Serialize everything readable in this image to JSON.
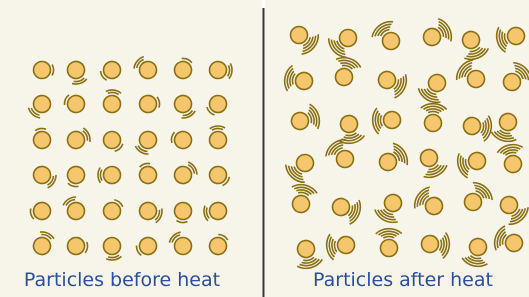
{
  "panels": [
    {
      "label": "Particles before heat"
    },
    {
      "label": "Particles after heat"
    }
  ]
}
